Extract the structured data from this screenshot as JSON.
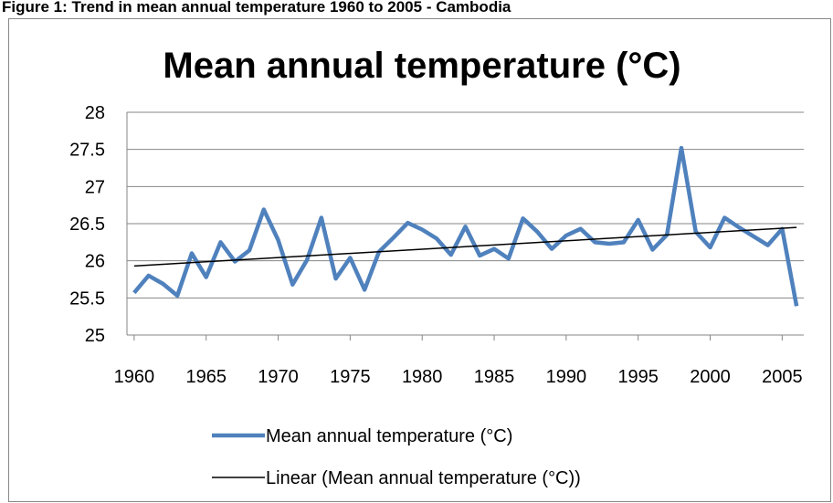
{
  "caption": "Figure 1: Trend in mean annual temperature 1960 to 2005 - Cambodia",
  "chart_data": {
    "type": "line",
    "title": "Mean annual temperature (°C)",
    "x": [
      1960,
      1961,
      1962,
      1963,
      1964,
      1965,
      1966,
      1967,
      1968,
      1969,
      1970,
      1971,
      1972,
      1973,
      1974,
      1975,
      1976,
      1977,
      1978,
      1979,
      1980,
      1981,
      1982,
      1983,
      1984,
      1985,
      1986,
      1987,
      1988,
      1989,
      1990,
      1991,
      1992,
      1993,
      1994,
      1995,
      1996,
      1997,
      1998,
      1999,
      2000,
      2001,
      2002,
      2003,
      2004,
      2005,
      2006
    ],
    "series": [
      {
        "name": "Mean annual temperature (°C)",
        "color": "#4f81bd",
        "values": [
          25.57,
          25.8,
          25.69,
          25.53,
          26.1,
          25.78,
          26.25,
          25.99,
          26.14,
          26.69,
          26.28,
          25.68,
          26.01,
          26.58,
          25.76,
          26.04,
          25.61,
          26.12,
          26.31,
          26.51,
          26.42,
          26.3,
          26.08,
          26.46,
          26.07,
          26.16,
          26.03,
          26.57,
          26.39,
          26.16,
          26.34,
          26.43,
          26.25,
          26.23,
          26.25,
          26.55,
          26.15,
          26.35,
          27.52,
          26.39,
          26.18,
          26.58,
          26.45,
          26.33,
          26.21,
          26.43,
          25.39
        ]
      },
      {
        "name": "Linear (Mean annual temperature (°C))",
        "color": "#000000",
        "x": [
          1960,
          2006
        ],
        "values": [
          25.93,
          26.45
        ]
      }
    ],
    "xlim": [
      1959.5,
      2006.5
    ],
    "xticks": [
      1960,
      1965,
      1970,
      1975,
      1980,
      1985,
      1990,
      1995,
      2000,
      2005
    ],
    "ylim": [
      25,
      28
    ],
    "yticks": [
      25,
      {
        "value": 25.5,
        "label": "25.5"
      },
      26,
      {
        "value": 26.5,
        "label": "26.5"
      },
      27,
      {
        "value": 27.5,
        "label": "27.5"
      },
      28
    ],
    "grid": true,
    "legend": "bottom"
  }
}
